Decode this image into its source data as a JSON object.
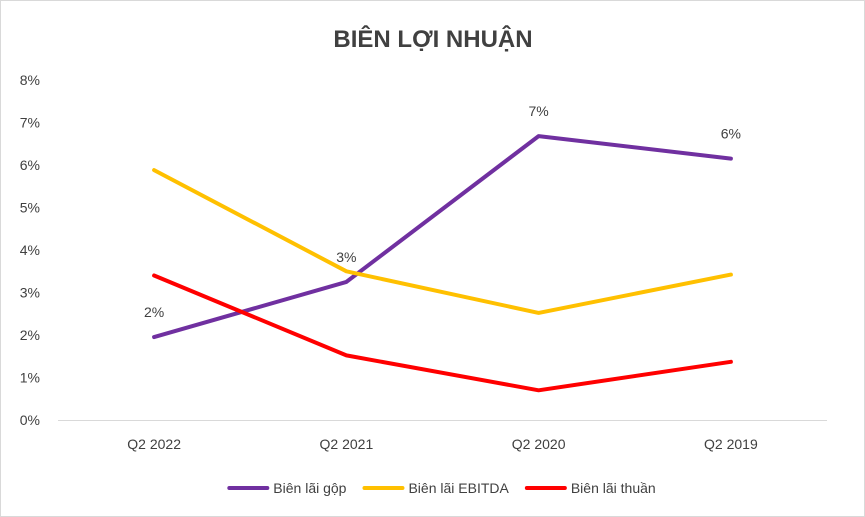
{
  "chart_data": {
    "type": "line",
    "title": "BIÊN LỢI NHUẬN",
    "xlabel": "",
    "ylabel": "",
    "categories": [
      "Q2 2022",
      "Q2 2021",
      "Q2 2020",
      "Q2 2019"
    ],
    "y_ticks": [
      "0%",
      "1%",
      "2%",
      "3%",
      "4%",
      "5%",
      "6%",
      "7%",
      "8%"
    ],
    "ylim": [
      0,
      8
    ],
    "grid": false,
    "legend_position": "bottom",
    "series": [
      {
        "name": "Biên lãi gộp",
        "color": "#7030A0",
        "values": [
          1.95,
          3.25,
          6.68,
          6.15
        ],
        "data_labels": [
          "2%",
          "3%",
          "7%",
          "6%"
        ]
      },
      {
        "name": "Biên lãi EBITDA",
        "color": "#FFC000",
        "values": [
          5.88,
          3.5,
          2.52,
          3.42
        ],
        "data_labels": []
      },
      {
        "name": "Biên lãi thuần",
        "color": "#FF0000",
        "values": [
          3.4,
          1.52,
          0.7,
          1.37
        ],
        "data_labels": []
      }
    ]
  }
}
